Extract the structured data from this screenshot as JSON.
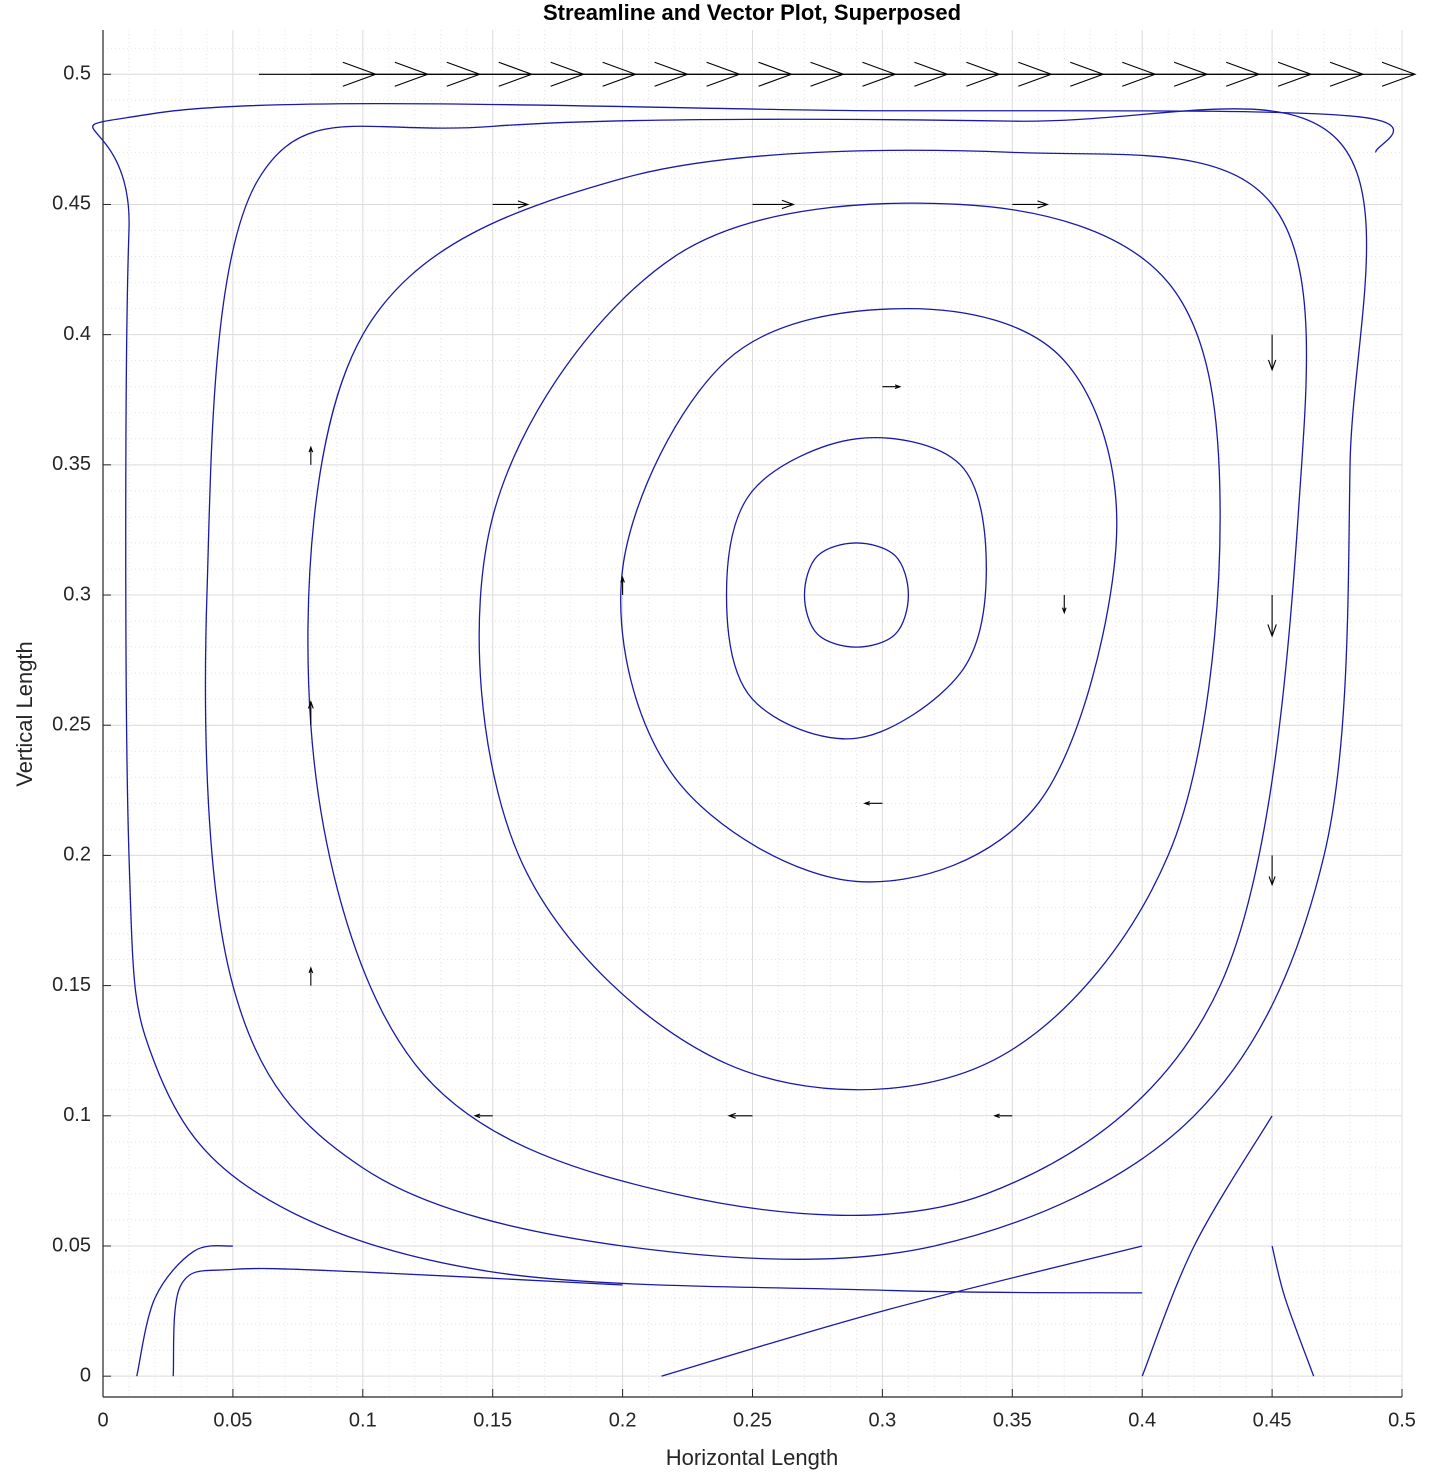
{
  "chart_data": {
    "type": "streamline",
    "title": "Streamline and Vector Plot, Superposed",
    "x_label": "Horizontal Length",
    "y_label": "Vertical Length",
    "xlim": [
      0,
      0.5
    ],
    "ylim": [
      -0.008,
      0.517
    ],
    "xticks": [
      0,
      0.05,
      0.1,
      0.15,
      0.2,
      0.25,
      0.3,
      0.35,
      0.4,
      0.45,
      0.5
    ],
    "yticks": [
      0,
      0.05,
      0.1,
      0.15,
      0.2,
      0.25,
      0.3,
      0.35,
      0.4,
      0.45,
      0.5
    ],
    "grid": true,
    "minor_grid": true,
    "streamline_color": "#1a1aa6",
    "vector_color": "#000000",
    "streamlines": [
      {
        "closed": true,
        "x": [
          0.31,
          0.305,
          0.29,
          0.275,
          0.27,
          0.275,
          0.29,
          0.305
        ],
        "y": [
          0.3,
          0.315,
          0.32,
          0.315,
          0.3,
          0.285,
          0.28,
          0.285
        ]
      },
      {
        "closed": true,
        "x": [
          0.34,
          0.33,
          0.29,
          0.25,
          0.24,
          0.25,
          0.29,
          0.33
        ],
        "y": [
          0.31,
          0.35,
          0.36,
          0.34,
          0.3,
          0.26,
          0.245,
          0.27
        ]
      },
      {
        "closed": true,
        "x": [
          0.39,
          0.37,
          0.31,
          0.24,
          0.2,
          0.22,
          0.29,
          0.36
        ],
        "y": [
          0.32,
          0.39,
          0.41,
          0.39,
          0.31,
          0.23,
          0.19,
          0.22
        ]
      },
      {
        "closed": true,
        "x": [
          0.43,
          0.41,
          0.33,
          0.22,
          0.15,
          0.16,
          0.24,
          0.34,
          0.41
        ],
        "y": [
          0.33,
          0.42,
          0.45,
          0.43,
          0.33,
          0.2,
          0.12,
          0.12,
          0.2
        ]
      },
      {
        "closed": true,
        "x": [
          0.46,
          0.45,
          0.35,
          0.2,
          0.1,
          0.08,
          0.12,
          0.22,
          0.34,
          0.43
        ],
        "y": [
          0.33,
          0.45,
          0.47,
          0.46,
          0.4,
          0.25,
          0.12,
          0.07,
          0.07,
          0.15
        ]
      },
      {
        "closed": true,
        "x": [
          0.48,
          0.475,
          0.35,
          0.15,
          0.06,
          0.04,
          0.05,
          0.1,
          0.2,
          0.32,
          0.42,
          0.47
        ],
        "y": [
          0.35,
          0.475,
          0.482,
          0.48,
          0.46,
          0.3,
          0.15,
          0.08,
          0.05,
          0.05,
          0.1,
          0.2
        ]
      },
      {
        "closed": false,
        "x": [
          0.49,
          0.48,
          0.3,
          0.02,
          0.01,
          0.01,
          0.02,
          0.06,
          0.15,
          0.3,
          0.4
        ],
        "y": [
          0.47,
          0.484,
          0.486,
          0.485,
          0.44,
          0.2,
          0.12,
          0.07,
          0.04,
          0.033,
          0.032
        ]
      },
      {
        "closed": false,
        "x": [
          0.013,
          0.02,
          0.035,
          0.05
        ],
        "y": [
          0,
          0.03,
          0.048,
          0.05
        ]
      },
      {
        "closed": false,
        "x": [
          0.027,
          0.03,
          0.05,
          0.1,
          0.2
        ],
        "y": [
          0,
          0.035,
          0.041,
          0.04,
          0.035
        ]
      },
      {
        "closed": false,
        "x": [
          0.215,
          0.3,
          0.4
        ],
        "y": [
          0,
          0.025,
          0.05
        ]
      },
      {
        "closed": false,
        "x": [
          0.4,
          0.42,
          0.45
        ],
        "y": [
          0,
          0.05,
          0.1
        ]
      },
      {
        "closed": false,
        "x": [
          0.466,
          0.455,
          0.45
        ],
        "y": [
          0,
          0.03,
          0.05
        ]
      }
    ],
    "vectors": {
      "x": [
        0.06,
        0.08,
        0.1,
        0.12,
        0.14,
        0.16,
        0.18,
        0.2,
        0.22,
        0.24,
        0.26,
        0.28,
        0.3,
        0.32,
        0.34,
        0.36,
        0.38,
        0.4,
        0.42,
        0.44,
        0.46,
        0.15,
        0.25,
        0.35,
        0.45,
        0.45,
        0.45,
        0.15,
        0.25,
        0.35,
        0.08,
        0.08,
        0.08,
        0.3,
        0.37,
        0.3,
        0.2
      ],
      "y": [
        0.5,
        0.5,
        0.5,
        0.5,
        0.5,
        0.5,
        0.5,
        0.5,
        0.5,
        0.5,
        0.5,
        0.5,
        0.5,
        0.5,
        0.5,
        0.5,
        0.5,
        0.5,
        0.5,
        0.5,
        0.5,
        0.45,
        0.45,
        0.45,
        0.4,
        0.3,
        0.2,
        0.1,
        0.1,
        0.1,
        0.15,
        0.25,
        0.35,
        0.38,
        0.3,
        0.22,
        0.3
      ],
      "u": [
        1,
        1,
        1,
        1,
        1,
        1,
        1,
        1,
        1,
        1,
        1,
        1,
        1,
        1,
        1,
        1,
        1,
        1,
        1,
        1,
        1,
        0.3,
        0.35,
        0.3,
        0,
        0,
        0,
        -0.15,
        -0.2,
        -0.15,
        0,
        0,
        0,
        0.15,
        0,
        -0.15,
        0
      ],
      "v": [
        0,
        0,
        0,
        0,
        0,
        0,
        0,
        0,
        0,
        0,
        0,
        0,
        0,
        0,
        0,
        0,
        0,
        0,
        0,
        0,
        0,
        0,
        0,
        0,
        -0.3,
        -0.35,
        -0.25,
        0,
        0,
        0,
        0.15,
        0.2,
        0.15,
        0,
        -0.15,
        0,
        0.15
      ]
    }
  }
}
